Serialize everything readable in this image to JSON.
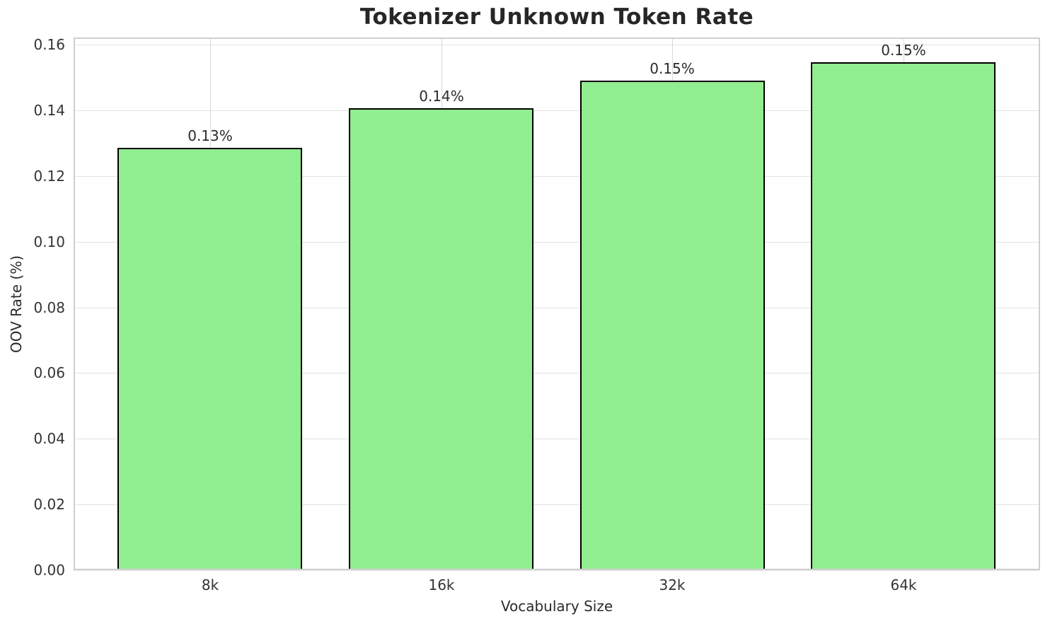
{
  "chart_data": {
    "type": "bar",
    "title": "Tokenizer Unknown Token Rate",
    "xlabel": "Vocabulary Size",
    "ylabel": "OOV Rate (%)",
    "categories": [
      "8k",
      "16k",
      "32k",
      "64k"
    ],
    "values": [
      0.1285,
      0.1406,
      0.149,
      0.1546
    ],
    "bar_labels": [
      "0.13%",
      "0.14%",
      "0.15%",
      "0.15%"
    ],
    "yticks": [
      0,
      0.02,
      0.04,
      0.06,
      0.08,
      0.1,
      0.12,
      0.14,
      0.16
    ],
    "ytick_labels": [
      "0.00",
      "0.02",
      "0.04",
      "0.06",
      "0.08",
      "0.10",
      "0.12",
      "0.14",
      "0.16"
    ],
    "ylim": [
      0,
      0.1622
    ],
    "grid": true,
    "legend": null,
    "bar_color": "#90EE90",
    "bar_edge_color": "#000000"
  }
}
